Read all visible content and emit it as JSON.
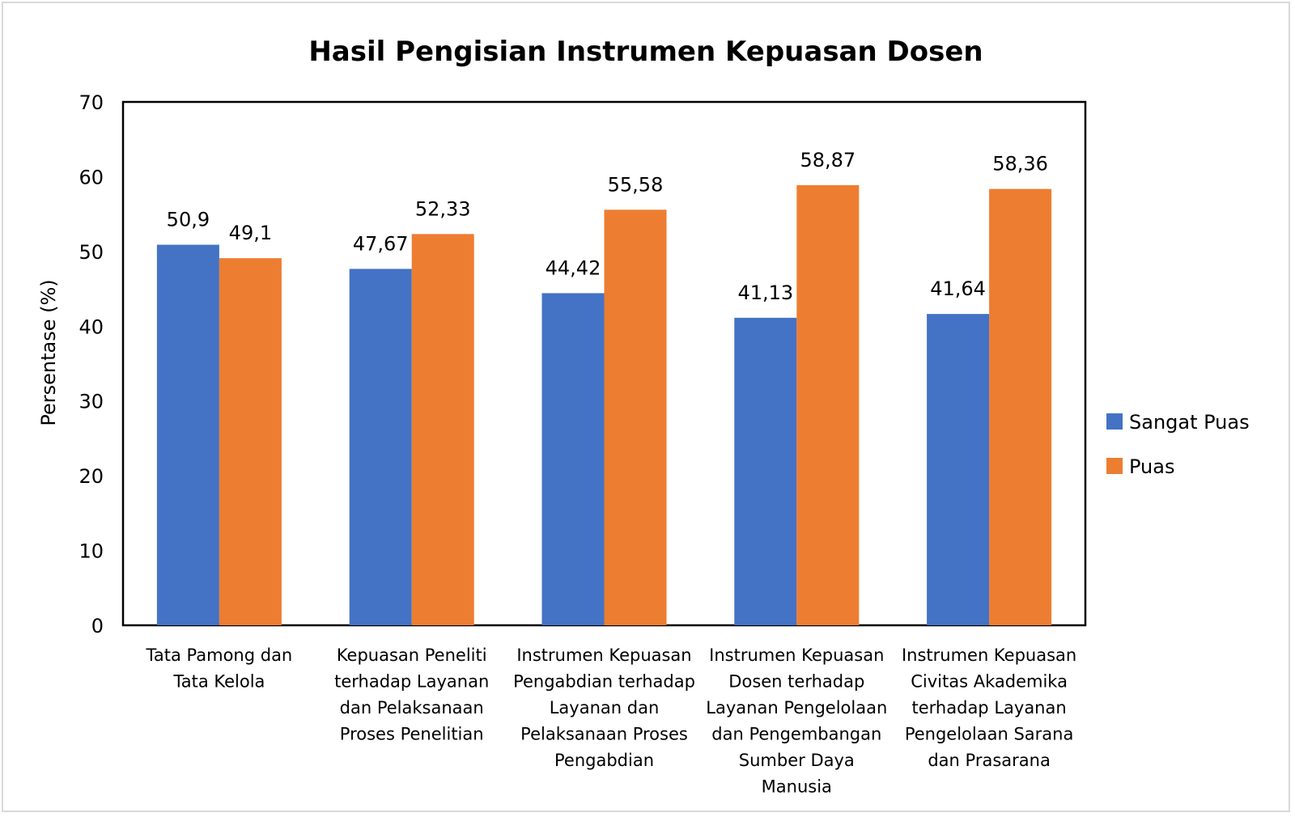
{
  "chart_data": {
    "type": "bar",
    "title": "Hasil Pengisian Instrumen Kepuasan Dosen",
    "xlabel": "",
    "ylabel": "Persentase (%)",
    "ylim": [
      0,
      70
    ],
    "yticks": [
      "0",
      "10",
      "20",
      "30",
      "40",
      "50",
      "60",
      "70"
    ],
    "grid": false,
    "legend_position": "right",
    "categories": [
      [
        "Tata Pamong dan",
        "Tata Kelola"
      ],
      [
        "Kepuasan Peneliti",
        "terhadap Layanan",
        "dan Pelaksanaan",
        "Proses Penelitian"
      ],
      [
        "Instrumen Kepuasan",
        "Pengabdian terhadap",
        "Layanan dan",
        "Pelaksanaan Proses",
        "Pengabdian"
      ],
      [
        "Instrumen Kepuasan",
        "Dosen terhadap",
        "Layanan Pengelolaan",
        "dan Pengembangan",
        "Sumber Daya",
        "Manusia"
      ],
      [
        "Instrumen Kepuasan",
        "Civitas Akademika",
        "terhadap Layanan",
        "Pengelolaan Sarana",
        "dan Prasarana"
      ]
    ],
    "series": [
      {
        "name": "Sangat Puas",
        "color": "#4472c4",
        "values": [
          50.9,
          47.67,
          44.42,
          41.13,
          41.64
        ],
        "labels": [
          "50,9",
          "47,67",
          "44,42",
          "41,13",
          "41,64"
        ]
      },
      {
        "name": "Puas",
        "color": "#ed7d31",
        "values": [
          49.1,
          52.33,
          55.58,
          58.87,
          58.36
        ],
        "labels": [
          "49,1",
          "52,33",
          "55,58",
          "58,87",
          "58,36"
        ]
      }
    ]
  }
}
